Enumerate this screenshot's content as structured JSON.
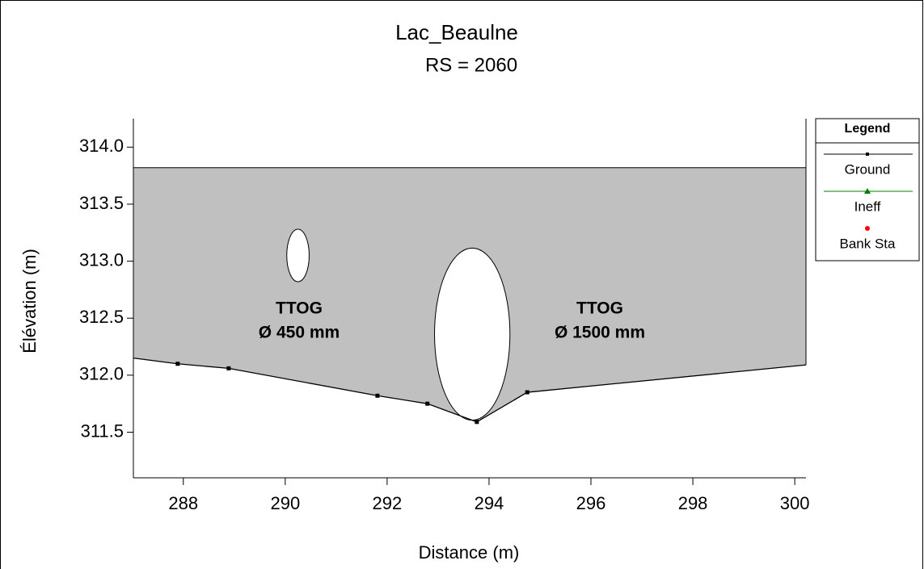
{
  "chart_data": {
    "type": "cross-section",
    "title": "Lac_Beaulne",
    "subtitle": "RS = 2060",
    "x_label": "Distance (m)",
    "y_label": "Élévation (m)",
    "xlim": [
      287.02,
      300.22
    ],
    "ylim": [
      311.1,
      314.25
    ],
    "xticks": [
      288,
      290,
      292,
      294,
      296,
      298,
      300
    ],
    "yticks": [
      311.5,
      {
        "value": 312,
        "label": "312.0"
      },
      312.5,
      {
        "value": 313,
        "label": "313.0"
      },
      313.5,
      {
        "value": 314,
        "label": "314.0"
      }
    ],
    "fill_color": "#c0c0c0",
    "deck_elevation": 313.82,
    "series": [
      {
        "name": "Ground",
        "color": "#000000",
        "x": [
          287.02,
          287.89,
          288.89,
          291.81,
          292.79,
          293.76,
          294.75,
          300.22
        ],
        "values": [
          312.15,
          312.1,
          312.06,
          311.82,
          311.75,
          311.59,
          311.85,
          312.09
        ]
      },
      {
        "name": "Ineff",
        "color": "#008000",
        "marker": "triangle"
      },
      {
        "name": "Bank Sta",
        "color": "#ff0000",
        "marker": "dot"
      }
    ],
    "legend_title": "Legend",
    "culverts": [
      {
        "center_x": 290.25,
        "center_y": 313.05,
        "width": 0.44,
        "height": 0.46
      },
      {
        "center_x": 293.67,
        "center_y": 312.36,
        "width": 1.48,
        "height": 1.51
      }
    ],
    "annotations": [
      [
        "TTOG",
        "Ø 450 mm"
      ],
      [
        "TTOG",
        "Ø 1500 mm"
      ]
    ]
  }
}
